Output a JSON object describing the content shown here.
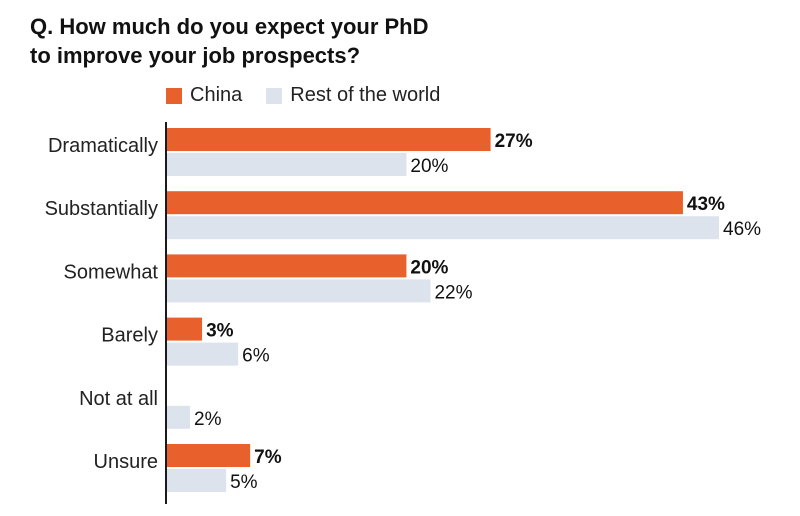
{
  "chart_data": {
    "type": "bar",
    "orientation": "horizontal",
    "title": "Q. How much do you expect your PhD to improve your job prospects?",
    "title_lines": [
      "Q. How much do you expect your PhD",
      "to improve your job prospects?"
    ],
    "categories": [
      "Dramatically",
      "Substantially",
      "Somewhat",
      "Barely",
      "Not at all",
      "Unsure"
    ],
    "series": [
      {
        "name": "China",
        "color": "#e8602c",
        "values": [
          27,
          43,
          20,
          3,
          0,
          7
        ],
        "labels": [
          "27%",
          "43%",
          "20%",
          "3%",
          "",
          "7%"
        ]
      },
      {
        "name": "Rest of the world",
        "color": "#dde3ec",
        "values": [
          20,
          46,
          22,
          6,
          2,
          5
        ],
        "labels": [
          "20%",
          "46%",
          "22%",
          "6%",
          "2%",
          "5%"
        ]
      }
    ],
    "xlim": [
      0,
      46
    ],
    "grid": false,
    "legend_position": "top-left"
  }
}
